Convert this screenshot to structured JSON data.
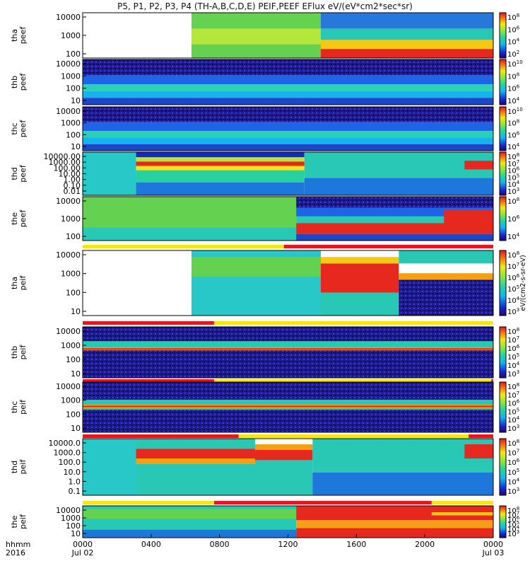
{
  "chart_data": {
    "type": "heatmap",
    "title": "P5, P1, P2, P3, P4 (TH-A,B,C,D,E) PEIF,PEEF EFlux eV/(eV*cm2*sec*sr)",
    "x_axis": {
      "tick_labels": [
        "0000",
        "0400",
        "0800",
        "1200",
        "1600",
        "2000",
        "0000"
      ],
      "date_labels": [
        "Jul 02",
        "Jul 03"
      ],
      "corner_labels": [
        "hhmm",
        "2016"
      ]
    },
    "colorbar_unit": "eV/(cm2-s-sr-eV)",
    "panels": [
      {
        "label": [
          "tha",
          "peef"
        ],
        "y_ticks": [
          "10000",
          "1000",
          "100"
        ],
        "cb_ticks": [
          "10^8",
          "10^6",
          "10^4",
          "10^2"
        ]
      },
      {
        "label": [
          "thb",
          "peef"
        ],
        "y_ticks": [
          "10000",
          "1000",
          "100",
          "10"
        ],
        "cb_ticks": [
          "10^10",
          "10^8",
          "10^6",
          "10^4"
        ]
      },
      {
        "label": [
          "thc",
          "peef"
        ],
        "y_ticks": [
          "10000",
          "1000",
          "100",
          "10"
        ],
        "cb_ticks": [
          "10^10",
          "10^8",
          "10^6",
          "10^4"
        ]
      },
      {
        "label": [
          "thd",
          "peef"
        ],
        "y_ticks": [
          "10000.00",
          "1000.00",
          "100.00",
          "10.00",
          "1.00",
          "0.10",
          "0.01"
        ],
        "cb_ticks": [
          "10^8",
          "10^7",
          "10^6",
          "10^5",
          "10^4",
          "10^3"
        ]
      },
      {
        "label": [
          "the",
          "peef"
        ],
        "y_ticks": [
          "10000",
          "1000",
          "100"
        ],
        "cb_ticks": [
          "10^8",
          "10^6",
          "10^4"
        ]
      },
      {
        "label": [
          "tha",
          "peif"
        ],
        "y_ticks": [
          "10000",
          "1000",
          "100",
          "10"
        ],
        "cb_ticks": [
          "10^8",
          "10^7",
          "10^6",
          "10^5",
          "10^4",
          "10^3"
        ]
      },
      {
        "label": [
          "thb",
          "peif"
        ],
        "y_ticks": [
          "10000",
          "1000",
          "100",
          "10"
        ],
        "cb_ticks": [
          "10^8",
          "10^7",
          "10^6",
          "10^5",
          "10^4",
          "10^3"
        ]
      },
      {
        "label": [
          "thc",
          "peif"
        ],
        "y_ticks": [
          "10000",
          "1000",
          "100",
          "10"
        ],
        "cb_ticks": [
          "10^8",
          "10^7",
          "10^6",
          "10^5",
          "10^4",
          "10^3"
        ]
      },
      {
        "label": [
          "thd",
          "peif"
        ],
        "y_ticks": [
          "10000.0",
          "1000.0",
          "100.0",
          "10.0",
          "1.0",
          "0.1"
        ],
        "cb_ticks": [
          "10^8",
          "10^7",
          "10^6",
          "10^5",
          "10^4",
          "10^3"
        ]
      },
      {
        "label": [
          "the",
          "peif"
        ],
        "y_ticks": [
          "10000",
          "1000",
          "100",
          "10"
        ],
        "cb_ticks": [
          "10^8",
          "10^7",
          "10^6",
          "10^5",
          "10^4",
          "10^3"
        ]
      }
    ],
    "colors": {
      "spectrogram_low": "#1a1aa0",
      "spectrogram_mid": "#28d2c8",
      "spectrogram_high": "#e61e14",
      "mode_bar_fast": "#e8141e",
      "mode_bar_slow": "#f5e614"
    }
  }
}
